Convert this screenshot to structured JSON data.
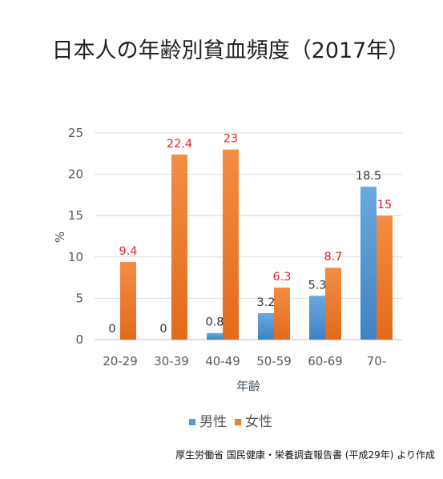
{
  "chart_data": {
    "type": "bar",
    "title": "日本人の年齢別貧血頻度（2017年）",
    "xlabel": "年齢",
    "ylabel": "%",
    "ylim": [
      0,
      25
    ],
    "yticks": [
      0,
      5,
      10,
      15,
      20,
      25
    ],
    "grid": "horizontal",
    "legend_position": "bottom",
    "categories": [
      "20-29",
      "30-39",
      "40-49",
      "50-59",
      "60-69",
      "70-"
    ],
    "series": [
      {
        "name": "男性",
        "values": [
          0,
          0,
          0.8,
          3.2,
          5.3,
          18.5
        ],
        "labels": [
          "0",
          "0",
          "0.8",
          "3.2",
          "5.3",
          "18.5"
        ],
        "color": "#5b9bd5",
        "label_color": "#333333"
      },
      {
        "name": "女性",
        "values": [
          9.4,
          22.4,
          23,
          6.3,
          8.7,
          15
        ],
        "labels": [
          "9.4",
          "22.4",
          "23",
          "6.3",
          "8.7",
          "15"
        ],
        "color": "#ed7d31",
        "label_color": "#e8202a"
      }
    ],
    "source": "厚生労働省 国民健康・栄養調査報告書 (平成29年) より作成"
  }
}
